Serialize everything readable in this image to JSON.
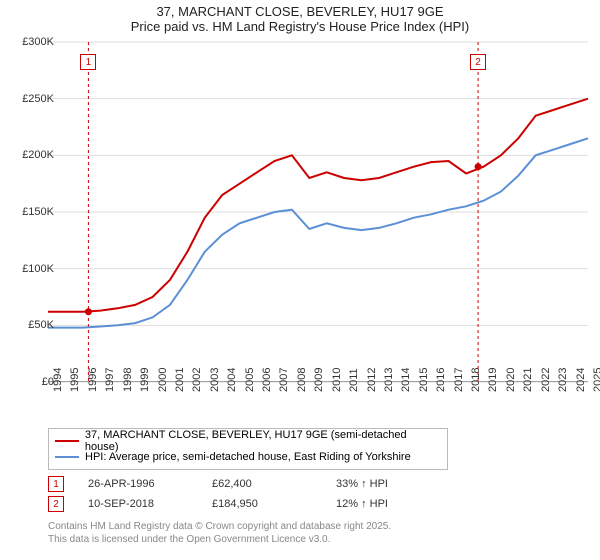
{
  "title": {
    "line1": "37, MARCHANT CLOSE, BEVERLEY, HU17 9GE",
    "line2": "Price paid vs. HM Land Registry's House Price Index (HPI)"
  },
  "chart": {
    "type": "line",
    "background_color": "#ffffff",
    "grid_color": "#dddddd",
    "axis_color": "#666666",
    "x_years": [
      1994,
      1995,
      1996,
      1997,
      1998,
      1999,
      2000,
      2001,
      2002,
      2003,
      2004,
      2005,
      2006,
      2007,
      2008,
      2009,
      2010,
      2011,
      2012,
      2013,
      2014,
      2015,
      2016,
      2017,
      2018,
      2019,
      2020,
      2021,
      2022,
      2023,
      2024,
      2025
    ],
    "ylim": [
      0,
      300
    ],
    "ytick_step": 50,
    "ytick_labels": [
      "£0",
      "£50K",
      "£100K",
      "£150K",
      "£200K",
      "£250K",
      "£300K"
    ],
    "series": [
      {
        "name": "price_paid",
        "label": "37, MARCHANT CLOSE, BEVERLEY, HU17 9GE (semi-detached house)",
        "color": "#cc0000",
        "line_width": 2,
        "data": [
          62,
          62,
          62,
          63,
          65,
          68,
          75,
          90,
          115,
          145,
          165,
          175,
          185,
          195,
          200,
          180,
          185,
          180,
          178,
          180,
          185,
          190,
          194,
          195,
          184,
          190,
          200,
          215,
          235,
          240,
          245,
          250
        ]
      },
      {
        "name": "hpi",
        "label": "HPI: Average price, semi-detached house, East Riding of Yorkshire",
        "color": "#5b8fd6",
        "line_width": 2,
        "data": [
          48,
          48,
          48,
          49,
          50,
          52,
          57,
          68,
          90,
          115,
          130,
          140,
          145,
          150,
          152,
          135,
          140,
          136,
          134,
          136,
          140,
          145,
          148,
          152,
          155,
          160,
          168,
          182,
          200,
          205,
          210,
          215
        ]
      }
    ],
    "markers": [
      {
        "num": "1",
        "year": 1996.32,
        "date": "26-APR-1996",
        "price": "£62,400",
        "delta": "33% ↑ HPI",
        "box_color": "#cc0000"
      },
      {
        "num": "2",
        "year": 2018.69,
        "date": "10-SEP-2018",
        "price": "£184,950",
        "delta": "12% ↑ HPI",
        "box_color": "#cc0000"
      }
    ],
    "marker_line_color": "#cc0000"
  },
  "footnote": {
    "line1": "Contains HM Land Registry data © Crown copyright and database right 2025.",
    "line2": "This data is licensed under the Open Government Licence v3.0."
  }
}
